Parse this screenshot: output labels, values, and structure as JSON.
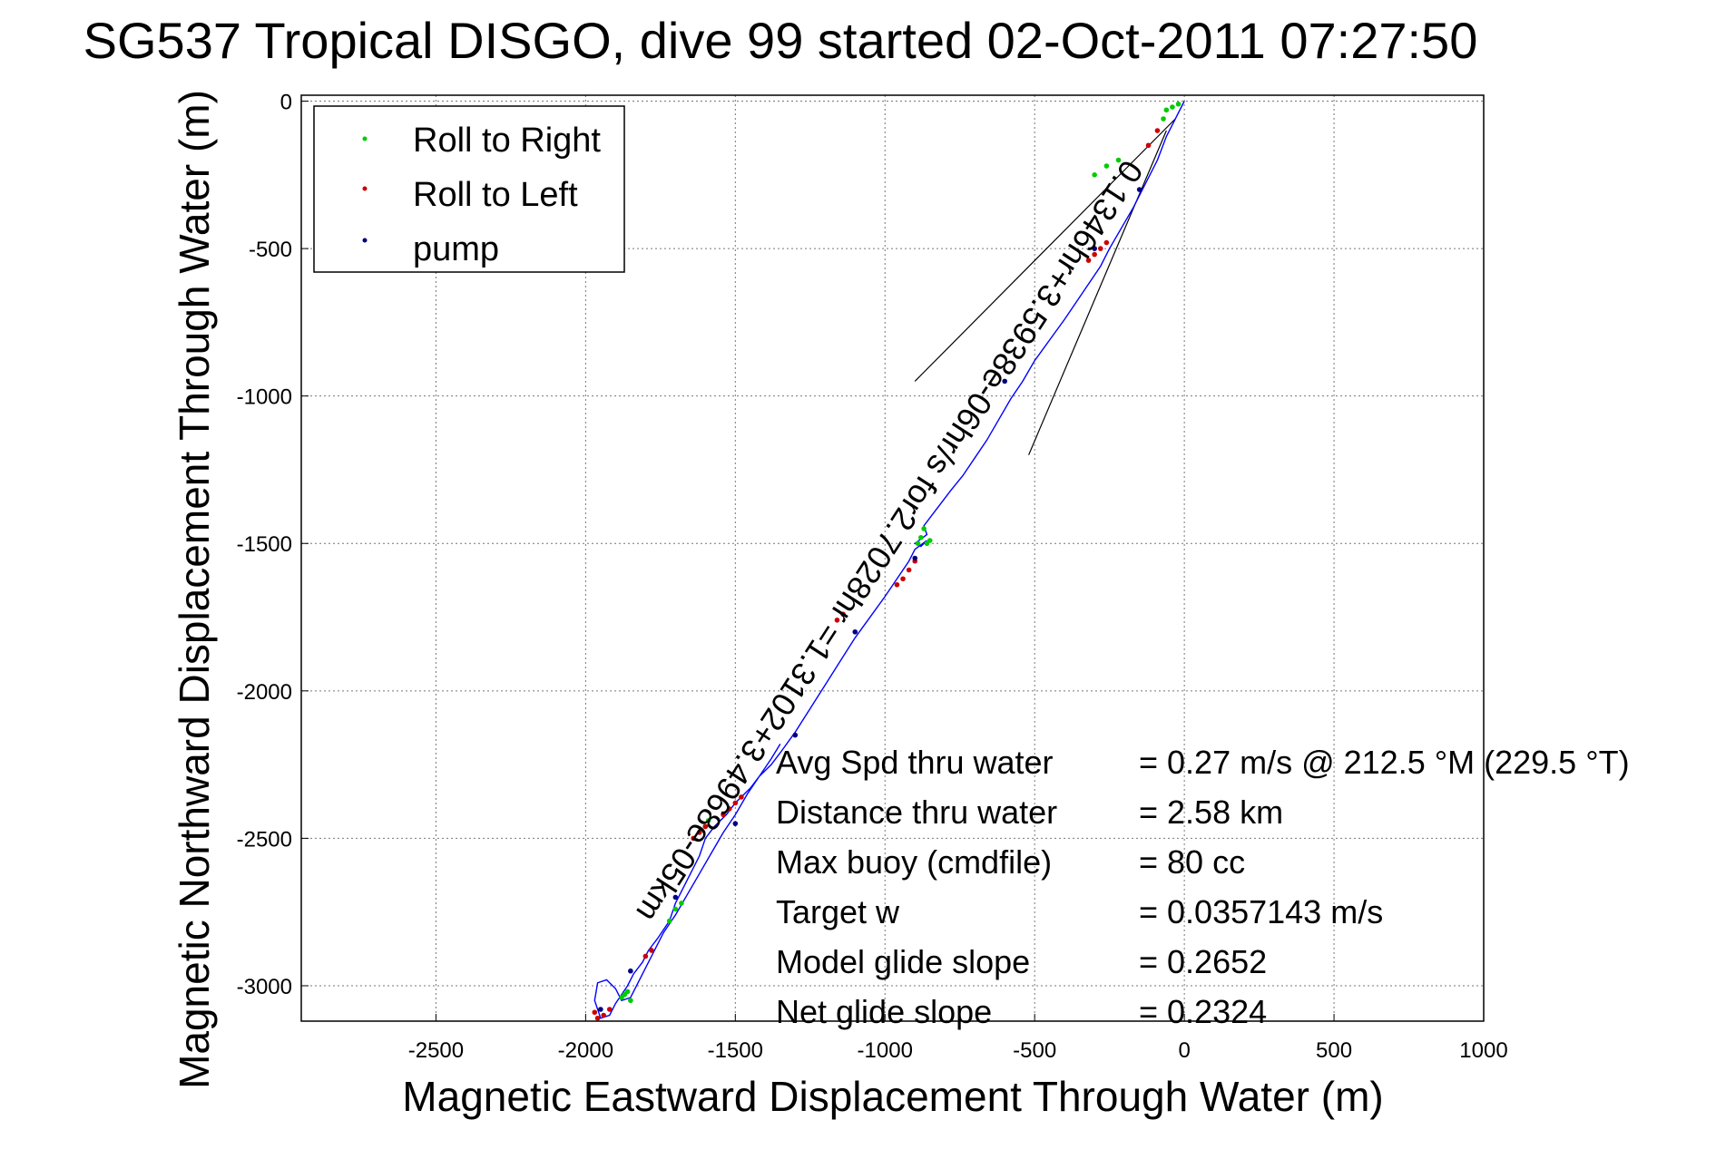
{
  "chart_data": {
    "type": "line",
    "title": "SG537 Tropical DISGO, dive 99 started 02-Oct-2011 07:27:50",
    "title_overlap_glyph": "(m)",
    "xlabel": "Magnetic Eastward Displacement Through Water (m)",
    "ylabel": "Magnetic Northward Displacement Through Water (m)",
    "xlim": [
      -2950,
      1000
    ],
    "ylim": [
      -3120,
      20
    ],
    "x_ticks": [
      -2500,
      -2000,
      -1500,
      -1000,
      -500,
      0,
      500,
      1000
    ],
    "y_ticks": [
      0,
      -500,
      -1000,
      -1500,
      -2000,
      -2500,
      -3000
    ],
    "grid": true,
    "legend": {
      "placement": "top-left",
      "entries": [
        {
          "label": "Roll to Right",
          "color": "#00cc00"
        },
        {
          "label": "Roll to Left",
          "color": "#cc0000"
        },
        {
          "label": "pump",
          "color": "#000080"
        }
      ]
    },
    "colors": {
      "track": "#0000ff",
      "roll_right": "#00cc00",
      "roll_left": "#cc0000",
      "pump": "#000080",
      "current_lines": "#000000"
    },
    "series": [
      {
        "name": "track",
        "x": [
          0,
          -30,
          -60,
          -90,
          -130,
          -170,
          -210,
          -250,
          -280,
          -320,
          -360,
          -400,
          -450,
          -500,
          -540,
          -580,
          -620,
          -660,
          -700,
          -740,
          -780,
          -810,
          -840,
          -870,
          -860,
          -900,
          -880,
          -860,
          -900,
          -920,
          -960,
          -1000,
          -1050,
          -1100,
          -1150,
          -1200,
          -1250,
          -1300,
          -1350,
          -1380,
          -1420,
          -1450,
          -1500,
          -1530,
          -1570,
          -1600,
          -1620,
          -1660,
          -1700,
          -1720,
          -1760,
          -1790,
          -1810,
          -1840,
          -1860,
          -1900,
          -1920,
          -1950,
          -1970,
          -1960,
          -1930,
          -1900,
          -1880,
          -1850,
          -1830,
          -1800,
          -1770,
          -1740,
          -1700,
          -1660,
          -1620,
          -1580,
          -1540,
          -1500,
          -1460,
          -1420,
          -1380,
          -1350
        ],
        "y": [
          0,
          -60,
          -120,
          -200,
          -280,
          -360,
          -430,
          -500,
          -560,
          -620,
          -680,
          -740,
          -810,
          -880,
          -950,
          -1010,
          -1080,
          -1150,
          -1210,
          -1270,
          -1320,
          -1360,
          -1400,
          -1440,
          -1470,
          -1500,
          -1510,
          -1490,
          -1520,
          -1560,
          -1620,
          -1680,
          -1750,
          -1820,
          -1900,
          -1980,
          -2060,
          -2140,
          -2210,
          -2250,
          -2290,
          -2330,
          -2380,
          -2420,
          -2460,
          -2500,
          -2560,
          -2640,
          -2720,
          -2780,
          -2840,
          -2880,
          -2920,
          -2960,
          -3000,
          -3060,
          -3100,
          -3110,
          -3050,
          -2990,
          -2980,
          -3010,
          -3050,
          -3040,
          -3000,
          -2940,
          -2880,
          -2820,
          -2760,
          -2690,
          -2620,
          -2550,
          -2480,
          -2420,
          -2350,
          -2290,
          -2230,
          -2180
        ]
      },
      {
        "name": "Roll to Right",
        "x": [
          -20,
          -40,
          -60,
          -70,
          -220,
          -260,
          -300,
          -870,
          -880,
          -890,
          -860,
          -850,
          -1870,
          -1880,
          -1860,
          -1850,
          -1700,
          -1720,
          -1680,
          -1600,
          -1590
        ],
        "y": [
          -10,
          -20,
          -30,
          -60,
          -200,
          -220,
          -250,
          -1450,
          -1480,
          -1500,
          -1500,
          -1490,
          -3030,
          -3040,
          -3020,
          -3050,
          -2740,
          -2780,
          -2720,
          -2460,
          -2440
        ]
      },
      {
        "name": "Roll to Left",
        "x": [
          -90,
          -120,
          -260,
          -280,
          -300,
          -320,
          -900,
          -920,
          -940,
          -960,
          -1140,
          -1160,
          -1600,
          -1620,
          -1640,
          -1540,
          -1520,
          -1500,
          -1480,
          -1920,
          -1940,
          -1960,
          -1970,
          -1780,
          -1800
        ],
        "y": [
          -100,
          -150,
          -480,
          -500,
          -520,
          -540,
          -1560,
          -1590,
          -1620,
          -1640,
          -1740,
          -1760,
          -2460,
          -2480,
          -2500,
          -2420,
          -2400,
          -2380,
          -2360,
          -3080,
          -3100,
          -3110,
          -3090,
          -2880,
          -2900
        ]
      },
      {
        "name": "pump",
        "x": [
          -150,
          -300,
          -600,
          -900,
          -1100,
          -1300,
          -1500,
          -1700,
          -1850,
          -1950
        ],
        "y": [
          -300,
          -500,
          -950,
          -1550,
          -1800,
          -2150,
          -2450,
          -2700,
          -2950,
          -3080
        ]
      }
    ],
    "current_lines": [
      {
        "x": [
          -30,
          -900
        ],
        "y": [
          -60,
          -950
        ]
      },
      {
        "x": [
          -60,
          -520
        ],
        "y": [
          -100,
          -1200
        ]
      }
    ],
    "rotated_annotation": "0.1346hr+3.5938e-06hr/s for2.7028hr =1.3102+3.4968e-05km",
    "stats": [
      {
        "label": "Avg Spd thru water",
        "value": "=  0.27 m/s @ 212.5 °M (229.5 °T)"
      },
      {
        "label": "Distance thru water",
        "value": "=  2.58 km"
      },
      {
        "label": "Max buoy (cmdfile)",
        "value": "= 80 cc"
      },
      {
        "label": "Target w",
        "value": "= 0.0357143 m/s"
      },
      {
        "label": "Model glide slope",
        "value": "= 0.2652"
      },
      {
        "label": "Net glide slope",
        "value": "= 0.2324"
      }
    ]
  }
}
